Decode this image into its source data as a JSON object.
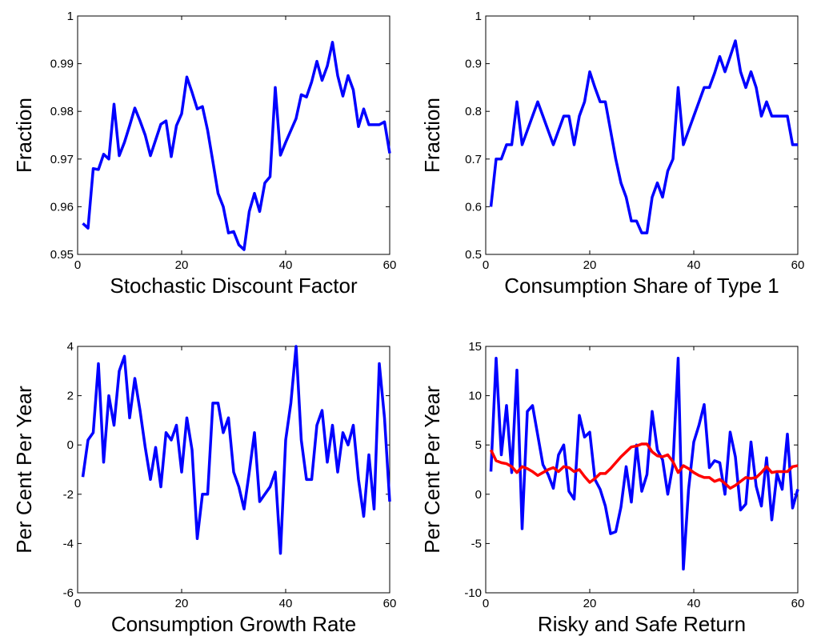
{
  "chart_data": [
    {
      "type": "line",
      "xlabel": "Stochastic Discount Factor",
      "ylabel": "Fraction",
      "color": "#0000ff",
      "x": [
        1,
        2,
        3,
        4,
        5,
        6,
        7,
        8,
        9,
        10,
        11,
        12,
        13,
        14,
        15,
        16,
        17,
        18,
        19,
        20,
        21,
        22,
        23,
        24,
        25,
        26,
        27,
        28,
        29,
        30,
        31,
        32,
        33,
        34,
        35,
        36,
        37,
        38,
        39,
        40,
        41,
        42,
        43,
        44,
        45,
        46,
        47,
        48,
        49,
        50,
        51,
        52,
        53,
        54,
        55,
        56,
        57,
        58,
        59,
        60
      ],
      "values": [
        0.9565,
        0.9555,
        0.968,
        0.9678,
        0.971,
        0.97,
        0.9815,
        0.9707,
        0.9735,
        0.977,
        0.9807,
        0.978,
        0.975,
        0.9707,
        0.974,
        0.9773,
        0.978,
        0.9705,
        0.977,
        0.9795,
        0.9872,
        0.984,
        0.9805,
        0.981,
        0.976,
        0.9695,
        0.9628,
        0.96,
        0.9545,
        0.9548,
        0.952,
        0.951,
        0.959,
        0.9628,
        0.959,
        0.965,
        0.9663,
        0.985,
        0.9708,
        0.9735,
        0.976,
        0.9785,
        0.9835,
        0.983,
        0.9862,
        0.9905,
        0.9865,
        0.9895,
        0.9945,
        0.9875,
        0.9832,
        0.9875,
        0.9845,
        0.9768,
        0.9805,
        0.9772,
        0.9772,
        0.9772,
        0.9778,
        0.9712
      ],
      "xlim": [
        0,
        60
      ],
      "xticks": [
        0,
        20,
        40,
        60
      ],
      "ylim": [
        0.95,
        1
      ],
      "yticks": [
        0.95,
        0.96,
        0.97,
        0.98,
        0.99,
        1
      ]
    },
    {
      "type": "line",
      "xlabel": "Consumption Share of Type 1",
      "ylabel": "Fraction",
      "color": "#0000ff",
      "x": [
        1,
        2,
        3,
        4,
        5,
        6,
        7,
        8,
        9,
        10,
        11,
        12,
        13,
        14,
        15,
        16,
        17,
        18,
        19,
        20,
        21,
        22,
        23,
        24,
        25,
        26,
        27,
        28,
        29,
        30,
        31,
        32,
        33,
        34,
        35,
        36,
        37,
        38,
        39,
        40,
        41,
        42,
        43,
        44,
        45,
        46,
        47,
        48,
        49,
        50,
        51,
        52,
        53,
        54,
        55,
        56,
        57,
        58,
        59,
        60
      ],
      "values": [
        0.6,
        0.7,
        0.7,
        0.73,
        0.73,
        0.82,
        0.73,
        0.76,
        0.79,
        0.82,
        0.79,
        0.76,
        0.73,
        0.76,
        0.79,
        0.79,
        0.73,
        0.79,
        0.82,
        0.883,
        0.85,
        0.82,
        0.82,
        0.76,
        0.7,
        0.65,
        0.62,
        0.57,
        0.57,
        0.545,
        0.545,
        0.62,
        0.65,
        0.62,
        0.675,
        0.7,
        0.85,
        0.73,
        0.76,
        0.79,
        0.82,
        0.85,
        0.85,
        0.88,
        0.915,
        0.883,
        0.915,
        0.948,
        0.883,
        0.85,
        0.883,
        0.85,
        0.79,
        0.82,
        0.79,
        0.79,
        0.79,
        0.79,
        0.73,
        0.73
      ],
      "xlim": [
        0,
        60
      ],
      "xticks": [
        0,
        20,
        40,
        60
      ],
      "ylim": [
        0.5,
        1
      ],
      "yticks": [
        0.5,
        0.6,
        0.7,
        0.8,
        0.9,
        1
      ]
    },
    {
      "type": "line",
      "xlabel": "Consumption Growth Rate",
      "ylabel": "Per Cent Per Year",
      "color": "#0000ff",
      "x": [
        1,
        2,
        3,
        4,
        5,
        6,
        7,
        8,
        9,
        10,
        11,
        12,
        13,
        14,
        15,
        16,
        17,
        18,
        19,
        20,
        21,
        22,
        23,
        24,
        25,
        26,
        27,
        28,
        29,
        30,
        31,
        32,
        33,
        34,
        35,
        36,
        37,
        38,
        39,
        40,
        41,
        42,
        43,
        44,
        45,
        46,
        47,
        48,
        49,
        50,
        51,
        52,
        53,
        54,
        55,
        56,
        57,
        58,
        59,
        60
      ],
      "values": [
        -1.3,
        0.2,
        0.5,
        3.3,
        -0.7,
        2.0,
        0.8,
        3.0,
        3.6,
        1.1,
        2.7,
        1.4,
        -0.1,
        -1.4,
        -0.1,
        -1.7,
        0.5,
        0.2,
        0.8,
        -1.1,
        1.1,
        -0.2,
        -3.8,
        -2.0,
        -2.0,
        1.7,
        1.7,
        0.5,
        1.1,
        -1.1,
        -1.7,
        -2.6,
        -1.1,
        0.5,
        -2.3,
        -2.0,
        -1.7,
        -1.1,
        -4.4,
        0.2,
        1.7,
        4.0,
        0.2,
        -1.4,
        -1.4,
        0.8,
        1.4,
        -0.7,
        0.8,
        -1.1,
        0.5,
        0.0,
        0.8,
        -1.4,
        -2.9,
        -0.4,
        -2.6,
        3.3,
        1.1,
        -2.3
      ],
      "xlim": [
        0,
        60
      ],
      "xticks": [
        0,
        20,
        40,
        60
      ],
      "ylim": [
        -6,
        4
      ],
      "yticks": [
        -6,
        -4,
        -2,
        0,
        2,
        4
      ]
    },
    {
      "type": "line",
      "xlabel": "Risky and Safe Return",
      "ylabel": "Per Cent Per Year",
      "x": [
        1,
        2,
        3,
        4,
        5,
        6,
        7,
        8,
        9,
        10,
        11,
        12,
        13,
        14,
        15,
        16,
        17,
        18,
        19,
        20,
        21,
        22,
        23,
        24,
        25,
        26,
        27,
        28,
        29,
        30,
        31,
        32,
        33,
        34,
        35,
        36,
        37,
        38,
        39,
        40,
        41,
        42,
        43,
        44,
        45,
        46,
        47,
        48,
        49,
        50,
        51,
        52,
        53,
        54,
        55,
        56,
        57,
        58,
        59,
        60
      ],
      "series": [
        {
          "color": "#0000ff",
          "values": [
            2.3,
            13.8,
            4.0,
            9.0,
            2.2,
            12.6,
            -3.5,
            8.4,
            9.0,
            6.0,
            3.0,
            2.0,
            0.6,
            4.0,
            5.0,
            0.3,
            -0.5,
            8.0,
            5.8,
            6.3,
            1.5,
            0.5,
            -1.2,
            -4.0,
            -3.8,
            -1.3,
            2.8,
            -0.8,
            5.0,
            0.3,
            2.0,
            8.4,
            4.5,
            3.5,
            0.0,
            3.0,
            13.8,
            -7.6,
            0.5,
            5.3,
            7.0,
            9.1,
            2.7,
            3.4,
            3.2,
            0.0,
            6.3,
            3.8,
            -1.6,
            -1.0,
            5.3,
            0.8,
            -1.2,
            3.7,
            -2.6,
            2.1,
            0.5,
            6.1,
            -1.4,
            0.5
          ]
        },
        {
          "color": "#ff0000",
          "values": [
            4.5,
            3.4,
            3.2,
            3.1,
            2.8,
            2.2,
            2.8,
            2.6,
            2.3,
            1.9,
            2.2,
            2.5,
            2.7,
            2.3,
            2.8,
            2.7,
            2.3,
            2.5,
            1.8,
            1.2,
            1.6,
            2.1,
            2.1,
            2.6,
            3.2,
            3.8,
            4.3,
            4.8,
            4.9,
            5.1,
            5.1,
            4.3,
            3.9,
            3.8,
            4.0,
            3.3,
            2.2,
            2.9,
            2.6,
            2.2,
            1.9,
            1.7,
            1.7,
            1.3,
            1.5,
            1.1,
            0.6,
            0.9,
            1.3,
            1.7,
            1.6,
            1.7,
            2.2,
            2.8,
            2.2,
            2.3,
            2.3,
            2.3,
            2.8,
            2.9
          ]
        }
      ],
      "xlim": [
        0,
        60
      ],
      "xticks": [
        0,
        20,
        40,
        60
      ],
      "ylim": [
        -10,
        15
      ],
      "yticks": [
        -10,
        -5,
        0,
        5,
        10,
        15
      ]
    }
  ]
}
